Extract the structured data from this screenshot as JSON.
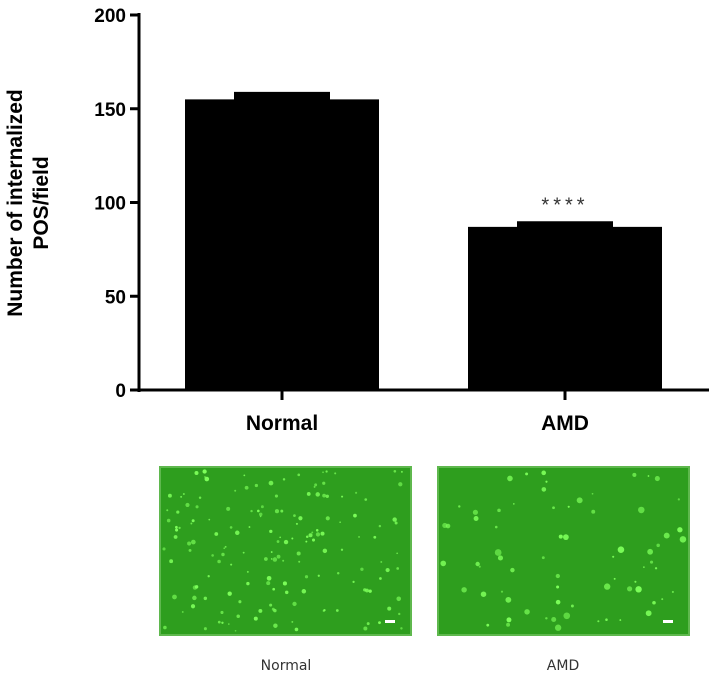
{
  "chart_data": {
    "type": "bar",
    "categories": [
      "Normal",
      "AMD"
    ],
    "values": [
      155,
      87
    ],
    "error": [
      4,
      3
    ],
    "annotations": [
      {
        "category": "AMD",
        "text": "****"
      }
    ],
    "ylabel_lines": [
      "Number of internalized",
      "POS/field"
    ],
    "ylim": [
      0,
      200
    ],
    "yticks": [
      0,
      50,
      100,
      150,
      200
    ],
    "bar_color": "#000000",
    "grid": false
  },
  "images": {
    "captions": [
      "Normal",
      "AMD"
    ],
    "color": "#2e9e1e"
  }
}
